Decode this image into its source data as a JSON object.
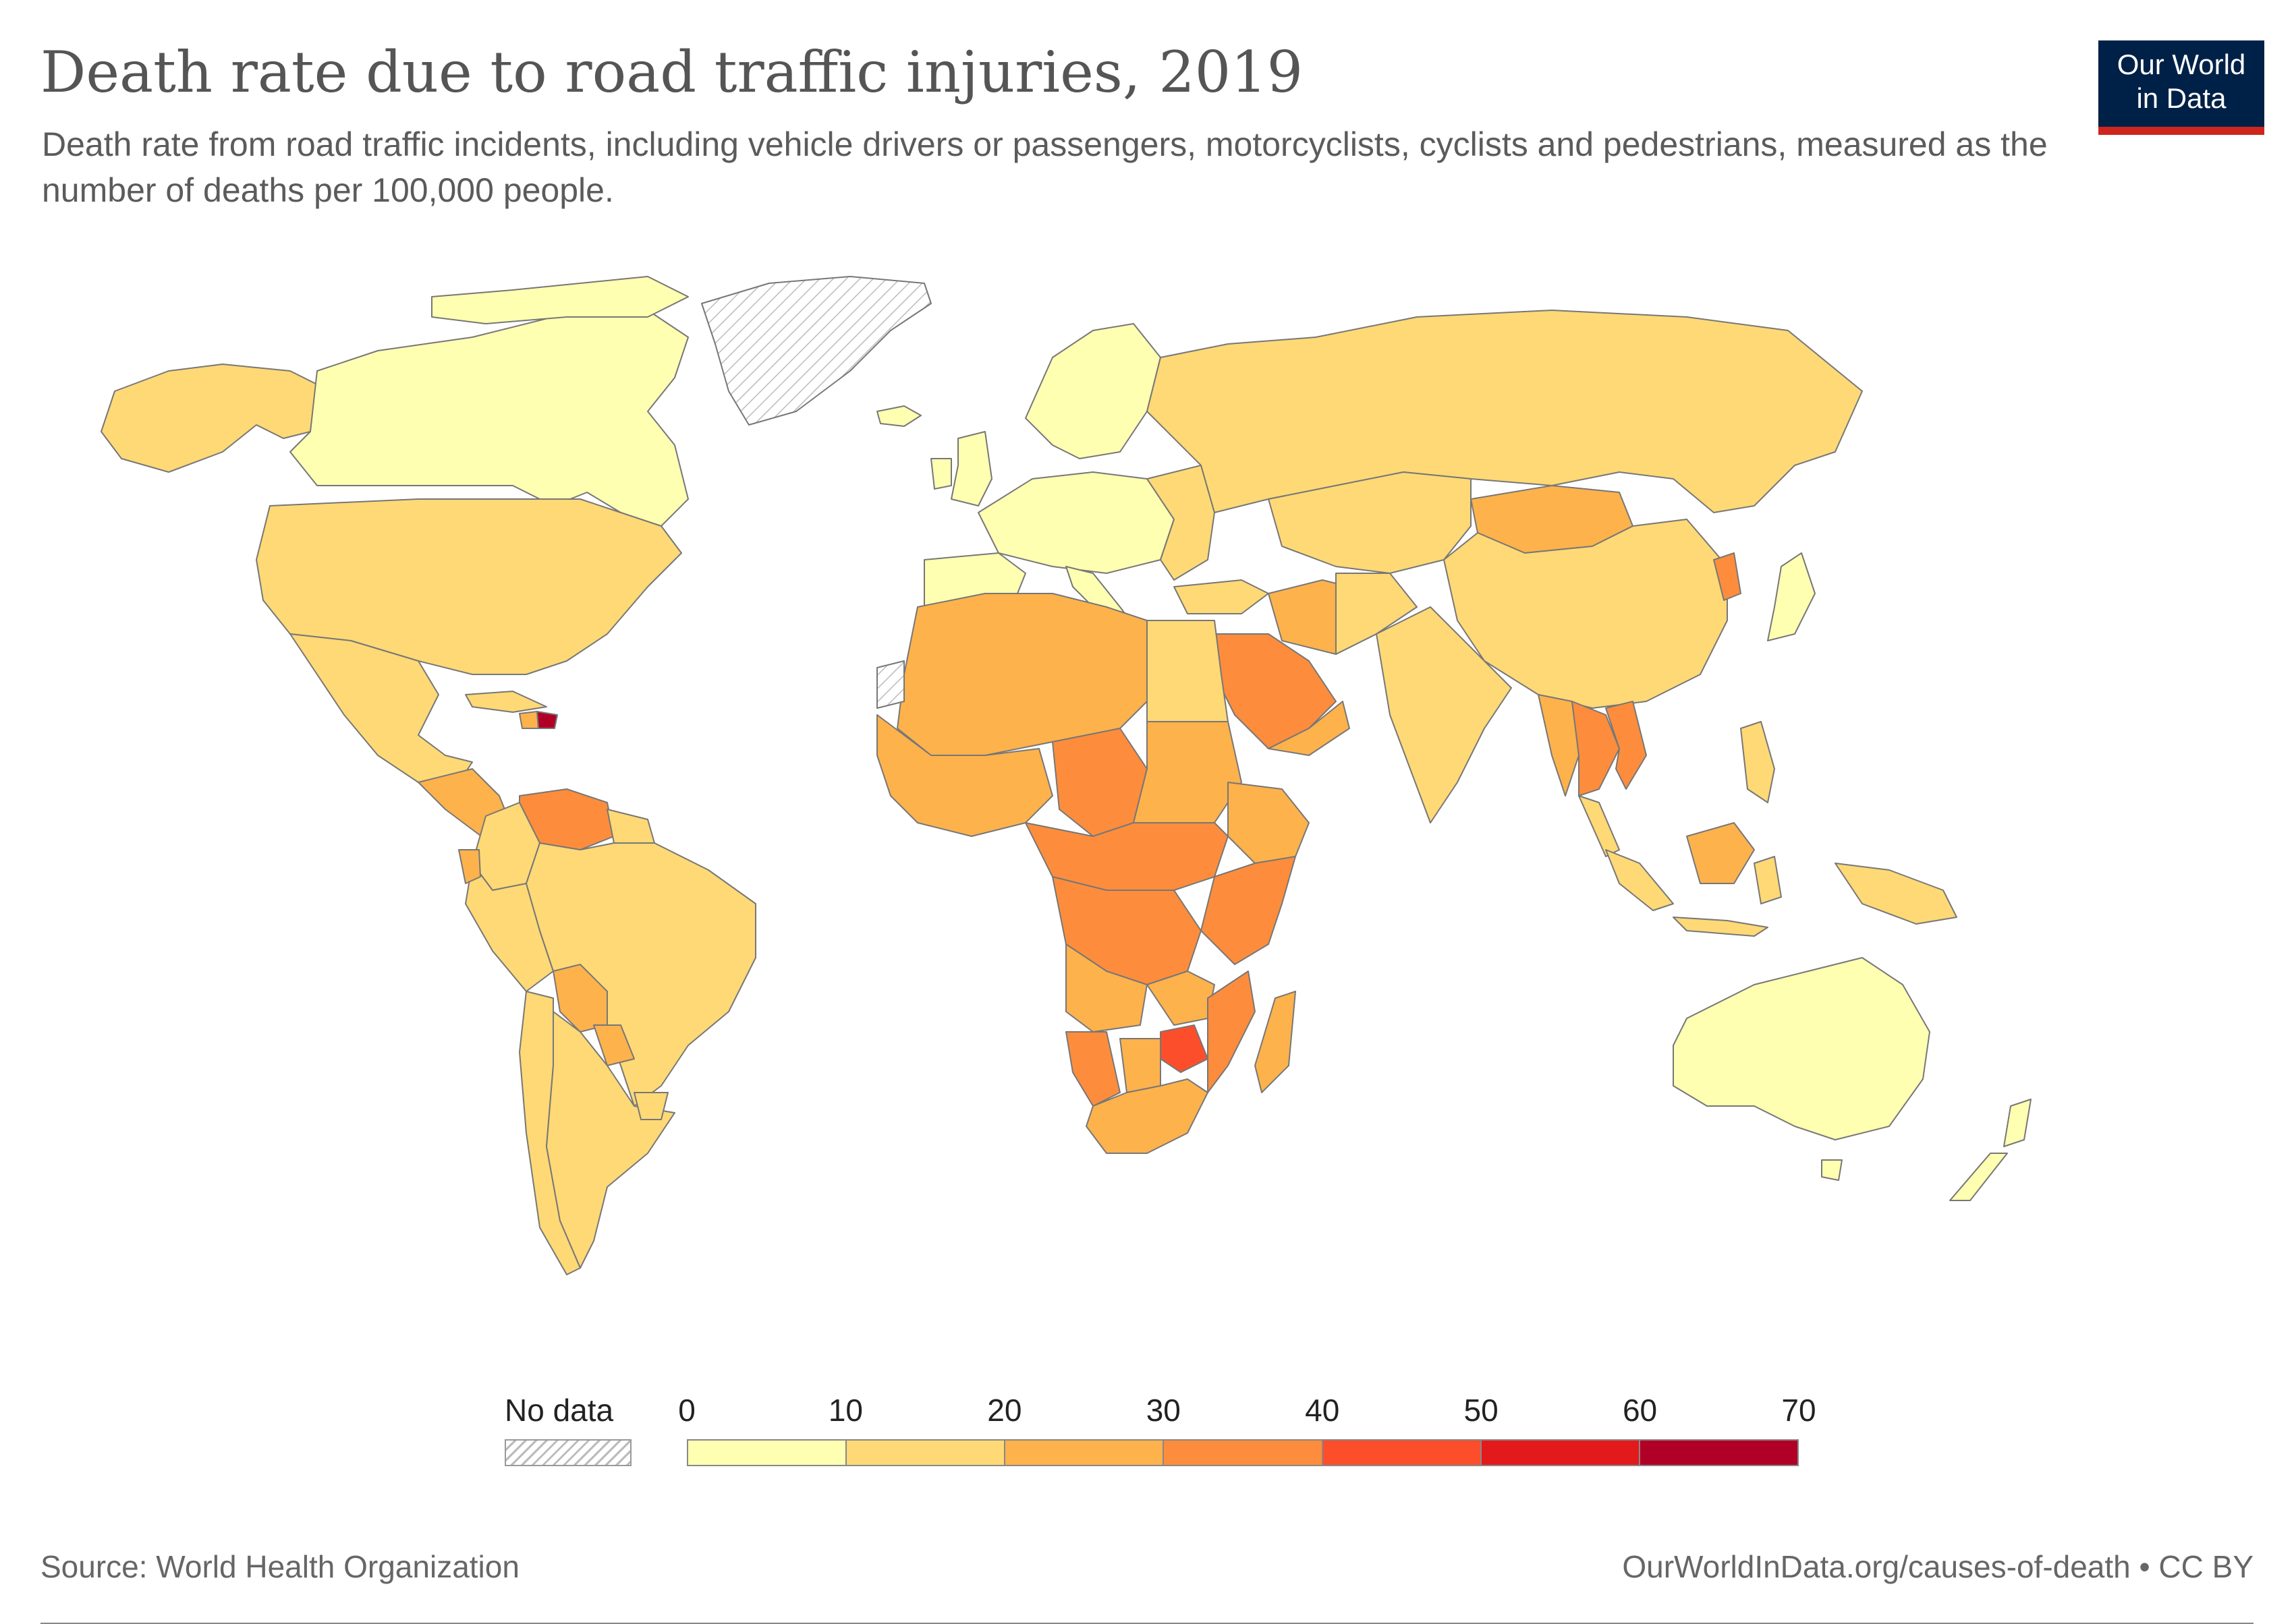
{
  "header": {
    "title": "Death rate due to road traffic injuries, 2019",
    "subtitle": "Death rate from road traffic incidents, including vehicle drivers or passengers, motorcyclists, cyclists and pedestrians, measured as the number of deaths per 100,000 people."
  },
  "logo": {
    "line1": "Our World",
    "line2": "in Data"
  },
  "legend": {
    "no_data_label": "No data",
    "ticks": [
      "0",
      "10",
      "20",
      "30",
      "40",
      "50",
      "60",
      "70"
    ],
    "bins": [
      "#ffffb2",
      "#fed976",
      "#feb24c",
      "#fd8d3c",
      "#fc4e2a",
      "#e31a1c",
      "#b10026"
    ]
  },
  "footer": {
    "source": "Source: World Health Organization",
    "credit": "OurWorldInData.org/causes-of-death • CC BY"
  },
  "map_data": {
    "type": "choropleth",
    "year": 2019,
    "unit": "deaths per 100,000 people",
    "scale": [
      0,
      10,
      20,
      30,
      40,
      50,
      60,
      70
    ],
    "regions": [
      {
        "name": "Greenland",
        "bin": "No data"
      },
      {
        "name": "Canada",
        "bin": "0-10"
      },
      {
        "name": "United States",
        "bin": "10-20"
      },
      {
        "name": "Mexico",
        "bin": "10-20"
      },
      {
        "name": "Dominican Republic",
        "bin": "60-70"
      },
      {
        "name": "Venezuela",
        "bin": "30-40"
      },
      {
        "name": "Brazil",
        "bin": "10-20"
      },
      {
        "name": "Bolivia",
        "bin": "20-30"
      },
      {
        "name": "Western Europe",
        "bin": "0-10"
      },
      {
        "name": "Russia",
        "bin": "10-20"
      },
      {
        "name": "Mongolia",
        "bin": "20-30"
      },
      {
        "name": "China",
        "bin": "10-20"
      },
      {
        "name": "Saudi Arabia",
        "bin": "30-40"
      },
      {
        "name": "Central Africa",
        "bin": "30-40"
      },
      {
        "name": "Zimbabwe",
        "bin": "40-50"
      },
      {
        "name": "Thailand",
        "bin": "30-40"
      },
      {
        "name": "Australia",
        "bin": "0-10"
      },
      {
        "name": "New Zealand",
        "bin": "0-10"
      }
    ]
  }
}
